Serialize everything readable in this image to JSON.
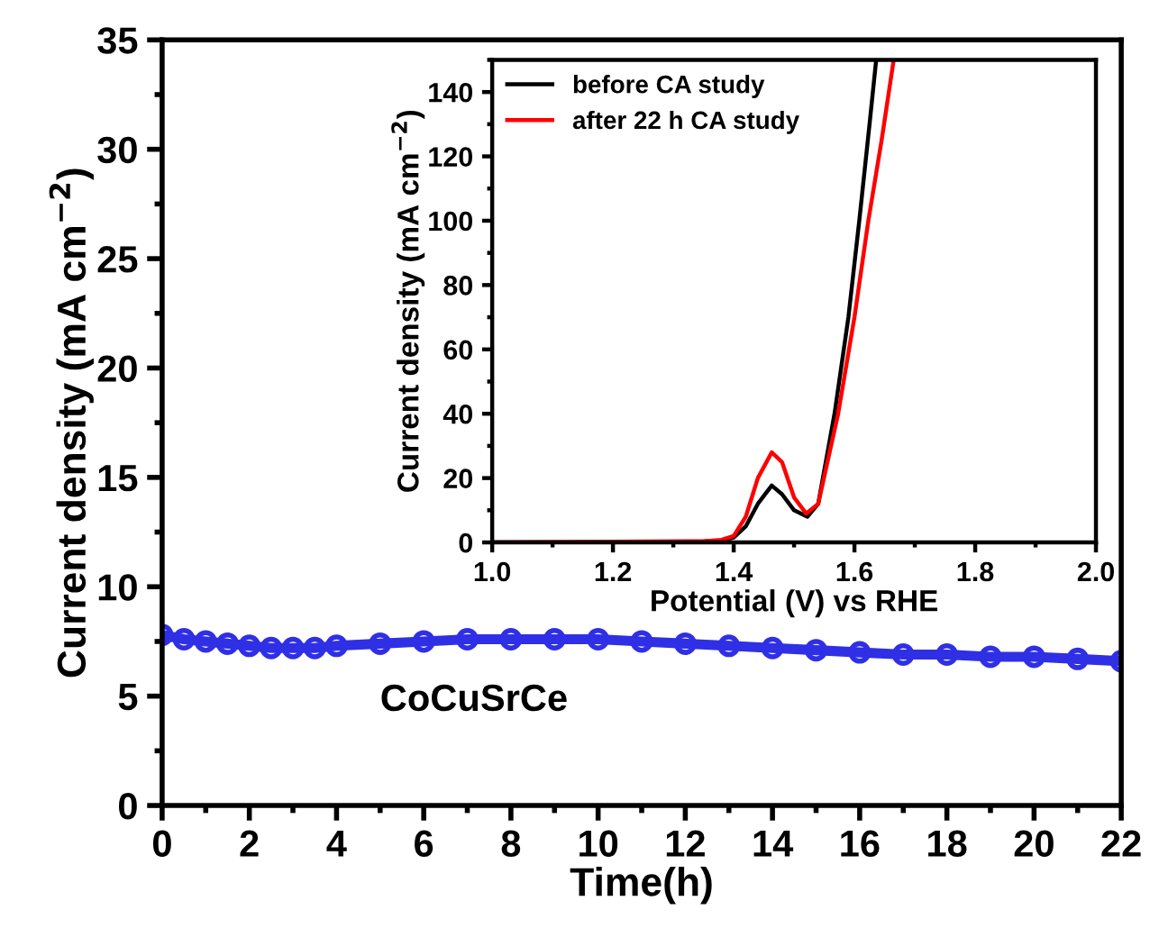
{
  "chart_data": [
    {
      "type": "line",
      "xlabel": "Time(h)",
      "ylabel": "Current density (mA cm$^{−2}$)",
      "xlim": [
        0,
        22
      ],
      "ylim": [
        0,
        35
      ],
      "xticks": [
        0,
        2,
        4,
        6,
        8,
        10,
        12,
        14,
        16,
        18,
        20,
        22
      ],
      "yticks": [
        0,
        5,
        10,
        15,
        20,
        25,
        30,
        35
      ],
      "marker": "circle",
      "grid": false,
      "legend": false,
      "x": [
        0,
        0.5,
        1,
        1.5,
        2,
        2.5,
        3,
        3.5,
        4,
        5,
        6,
        7,
        8,
        9,
        10,
        11,
        12,
        13,
        14,
        15,
        16,
        17,
        18,
        19,
        20,
        21,
        22
      ],
      "series": [
        {
          "name": "CoCuSrCe",
          "color": "#2f2fe6",
          "values": [
            7.8,
            7.6,
            7.5,
            7.4,
            7.3,
            7.2,
            7.2,
            7.2,
            7.3,
            7.4,
            7.5,
            7.6,
            7.6,
            7.6,
            7.6,
            7.5,
            7.4,
            7.3,
            7.2,
            7.1,
            7.0,
            6.9,
            6.9,
            6.8,
            6.8,
            6.7,
            6.6
          ]
        }
      ]
    },
    {
      "type": "line",
      "xlabel": "Potential (V) vs RHE",
      "ylabel": "Current density (mA cm$^{−2}$)",
      "xlim": [
        1.0,
        2.0
      ],
      "ylim": [
        0,
        150
      ],
      "xticks": [
        {
          "value": 1.0,
          "label": "1.0"
        },
        1.2,
        1.4,
        1.6,
        1.8,
        {
          "value": 2.0,
          "label": "2.0"
        }
      ],
      "yticks": [
        0,
        20,
        40,
        60,
        80,
        100,
        120,
        140
      ],
      "marker": "none",
      "grid": false,
      "legend": "top left",
      "series": [
        {
          "name": "before CA study",
          "color": "#000000",
          "x": [
            1.0,
            1.2,
            1.35,
            1.38,
            1.4,
            1.42,
            1.44,
            1.463,
            1.48,
            1.5,
            1.522,
            1.54,
            1.567,
            1.59,
            1.608,
            1.625,
            1.636
          ],
          "values": [
            0,
            0,
            0.3,
            0.6,
            1.5,
            5,
            12,
            17.7,
            15,
            10,
            8,
            12,
            40,
            70,
            100,
            130,
            150
          ]
        },
        {
          "name": "after 22 h CA study",
          "color": "#ff0000",
          "x": [
            1.0,
            1.35,
            1.38,
            1.4,
            1.42,
            1.44,
            1.463,
            1.48,
            1.5,
            1.52,
            1.54,
            1.573,
            1.6,
            1.623,
            1.645,
            1.665
          ],
          "values": [
            0,
            0.4,
            0.8,
            2,
            8,
            20,
            28,
            25,
            14,
            9,
            12,
            40,
            70,
            100,
            125,
            150
          ]
        }
      ]
    }
  ]
}
